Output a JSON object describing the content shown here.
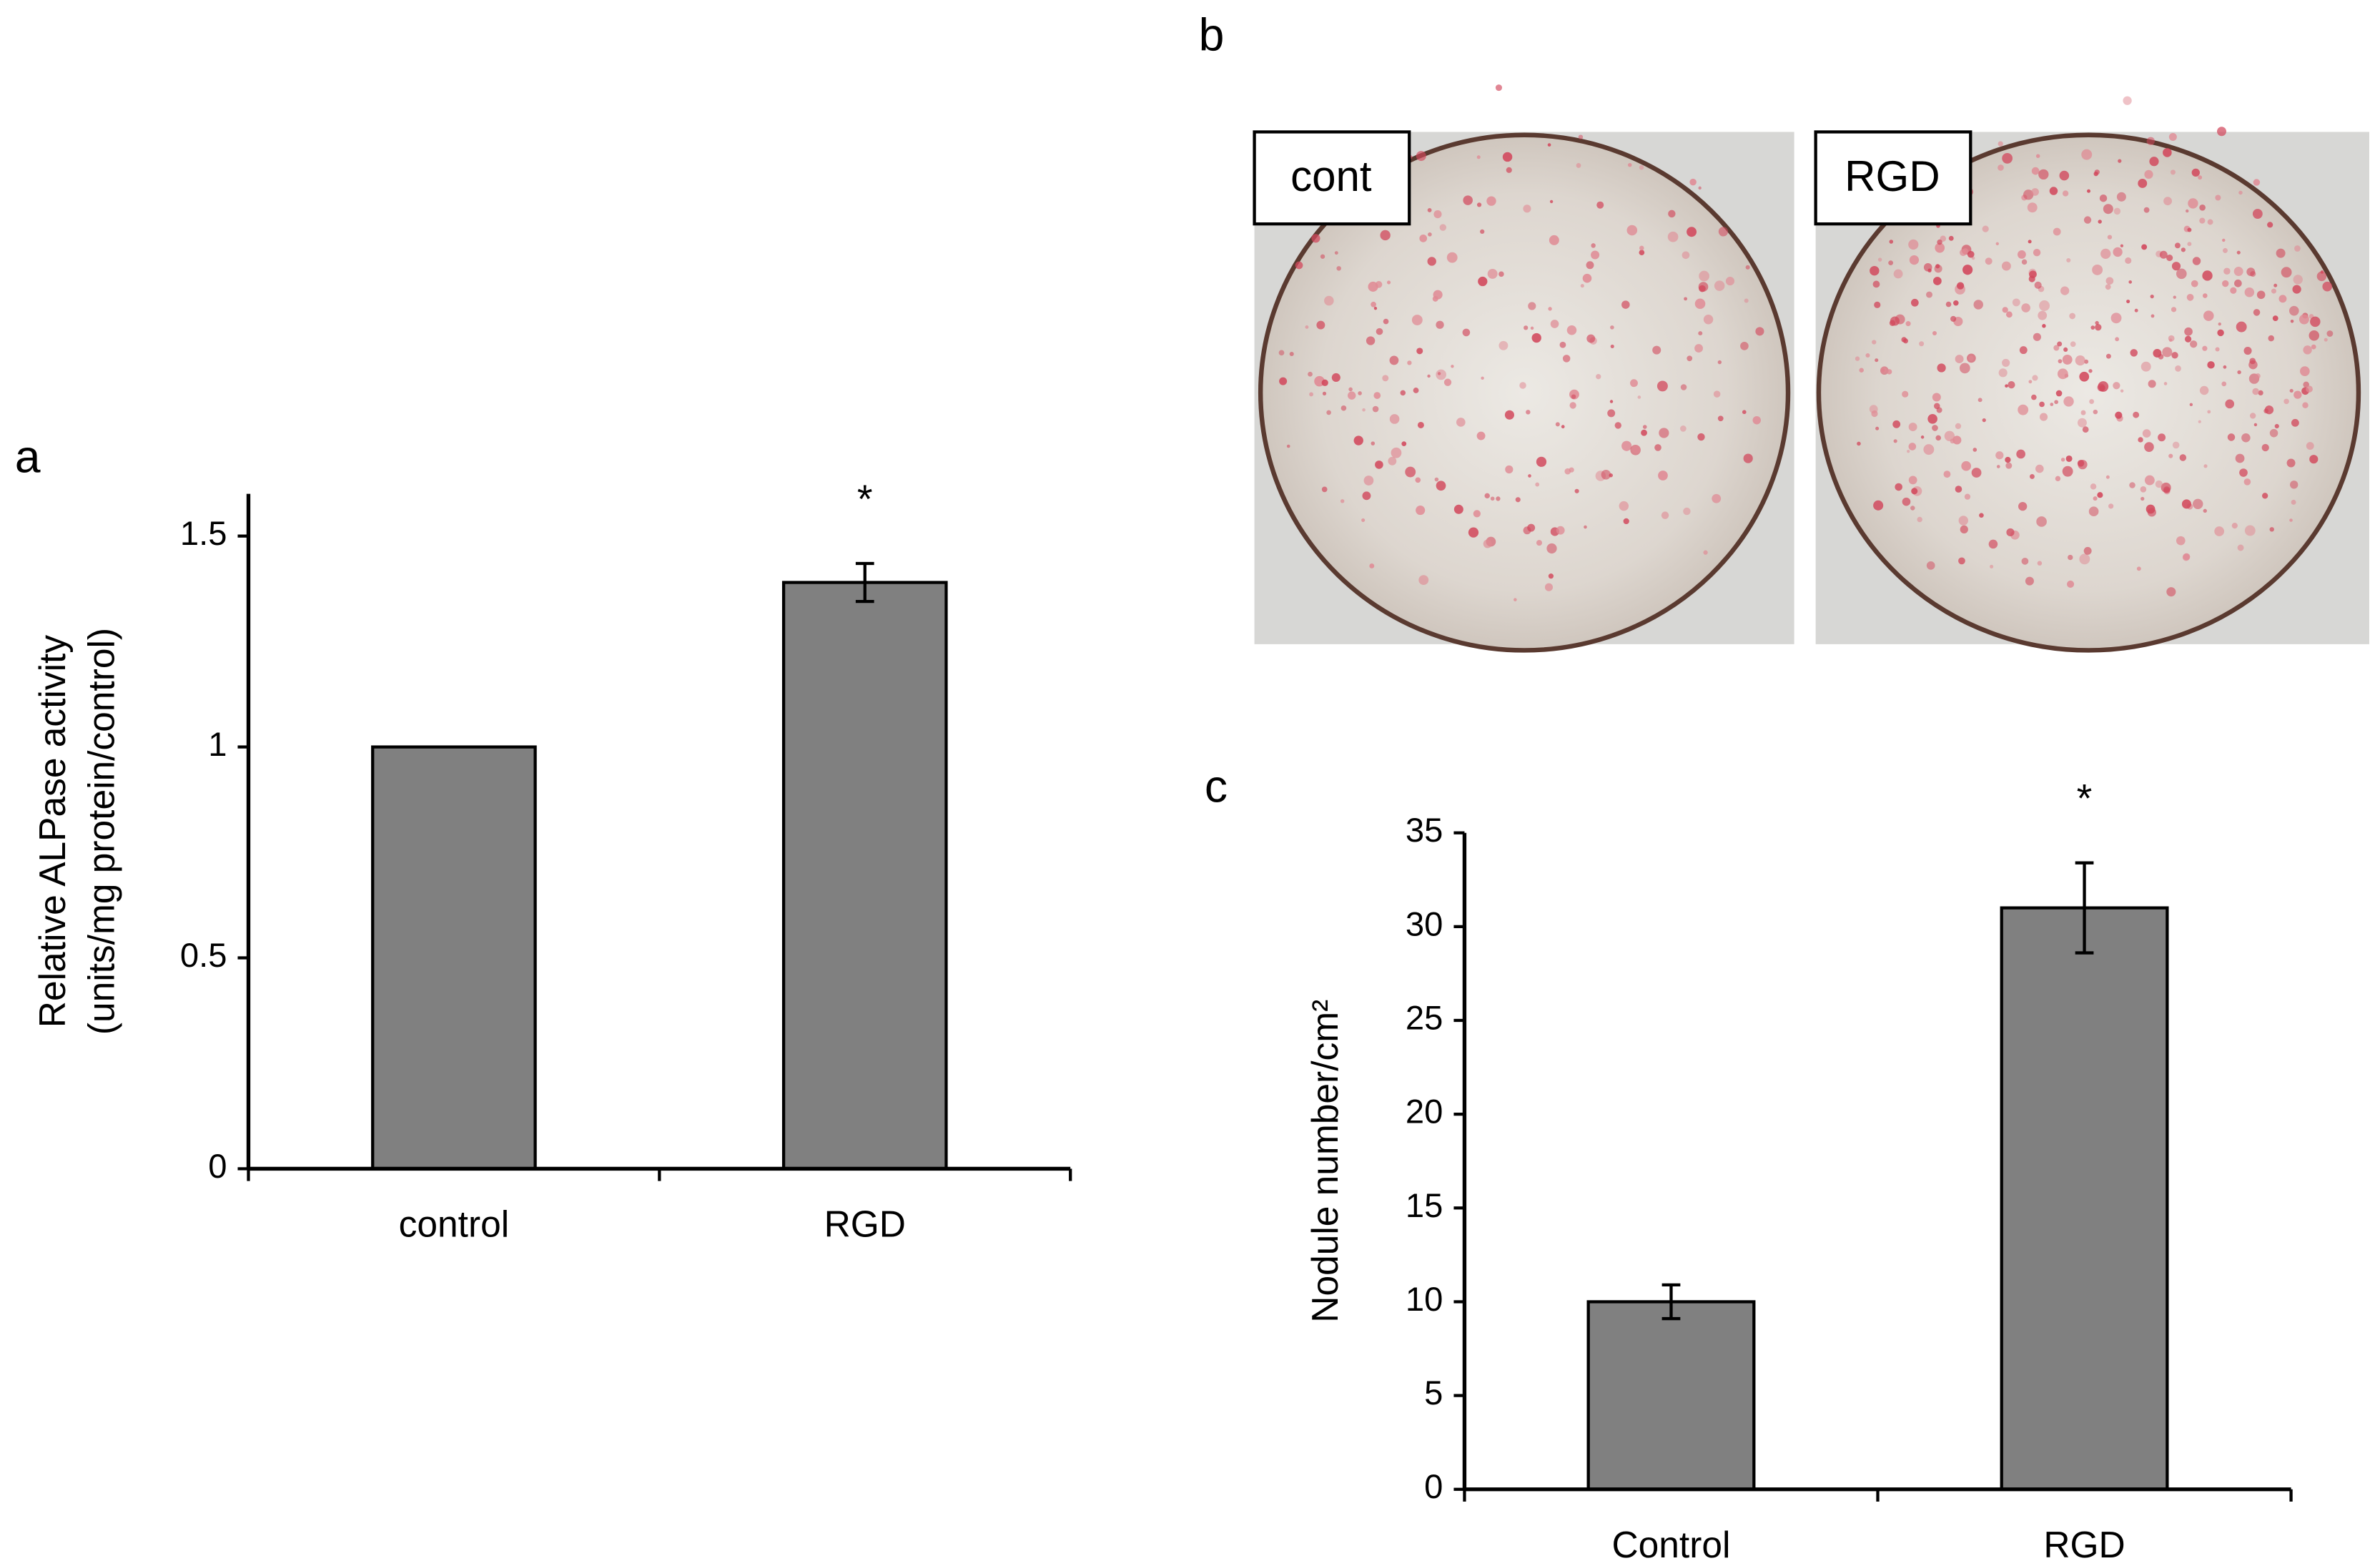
{
  "chart_data": [
    {
      "type": "bar",
      "panel_label": "a",
      "ylabel": [
        "Relative ALPase activity",
        "(units/mg protein/control)"
      ],
      "categories": [
        "control",
        "RGD"
      ],
      "values": [
        1,
        1.39
      ],
      "errors": [
        null,
        0.045
      ],
      "color": "#808080",
      "ylim": [
        0,
        1.6
      ],
      "yticks": [
        0,
        0.5,
        1,
        1.5
      ],
      "annotations": [
        {
          "text": "*",
          "x": "RGD"
        }
      ]
    },
    {
      "type": "bar",
      "panel_label": "c",
      "ylabel": [
        "Nodule number/cm²"
      ],
      "categories": [
        "Control",
        "RGD"
      ],
      "values": [
        10,
        31
      ],
      "errors": [
        0.9,
        2.4
      ],
      "color": "#808080",
      "ylim": [
        0,
        35
      ],
      "yticks": [
        0,
        5,
        10,
        15,
        20,
        25,
        30,
        35
      ],
      "annotations": [
        {
          "text": "*",
          "x": "RGD"
        }
      ]
    }
  ],
  "panel_b": {
    "panel_label": "b",
    "images": [
      {
        "label": "cont"
      },
      {
        "label": "RGD"
      }
    ]
  }
}
